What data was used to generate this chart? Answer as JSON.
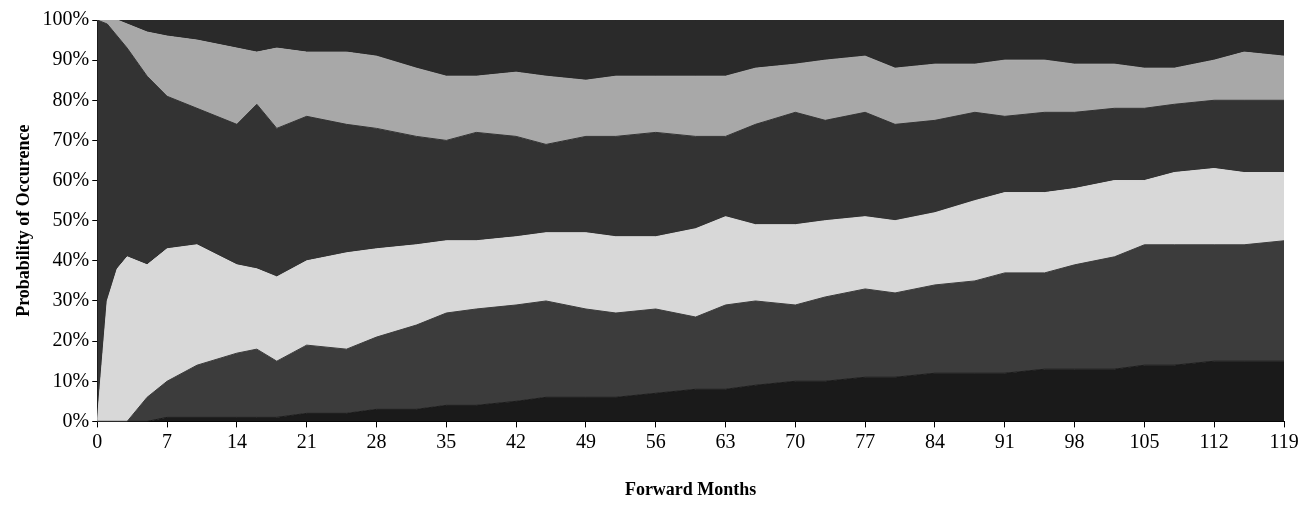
{
  "chart_data": {
    "type": "area",
    "stacked": true,
    "xlabel": "Forward Months",
    "ylabel": "Probability of Occurence",
    "marker": "none",
    "x": [
      0,
      1,
      2,
      3,
      5,
      7,
      10,
      14,
      16,
      18,
      21,
      25,
      28,
      32,
      35,
      38,
      42,
      45,
      49,
      52,
      56,
      60,
      63,
      66,
      70,
      73,
      77,
      80,
      84,
      88,
      91,
      95,
      98,
      102,
      105,
      108,
      112,
      115,
      119
    ],
    "series": [
      {
        "color": "#1a1a1a",
        "values": [
          0,
          0,
          0,
          0,
          0,
          1,
          1,
          1,
          1,
          1,
          2,
          2,
          3,
          3,
          4,
          4,
          5,
          6,
          6,
          6,
          7,
          8,
          8,
          9,
          10,
          10,
          11,
          11,
          12,
          12,
          12,
          13,
          13,
          13,
          14,
          14,
          15,
          15,
          15
        ]
      },
      {
        "color": "#3c3c3c",
        "values": [
          0,
          0,
          0,
          0,
          6,
          9,
          13,
          16,
          17,
          14,
          17,
          16,
          18,
          21,
          23,
          24,
          24,
          24,
          22,
          21,
          21,
          18,
          21,
          21,
          19,
          21,
          22,
          21,
          22,
          23,
          25,
          24,
          26,
          28,
          30,
          30,
          29,
          29,
          30
        ]
      },
      {
        "color": "#d8d8d8",
        "values": [
          0,
          30,
          38,
          41,
          33,
          33,
          30,
          22,
          20,
          21,
          21,
          24,
          22,
          20,
          18,
          17,
          17,
          17,
          19,
          19,
          18,
          22,
          22,
          19,
          20,
          19,
          18,
          18,
          18,
          20,
          20,
          20,
          19,
          19,
          16,
          18,
          19,
          18,
          17
        ]
      },
      {
        "color": "#333333",
        "values": [
          100,
          69,
          58,
          52,
          47,
          38,
          34,
          35,
          41,
          37,
          36,
          32,
          30,
          27,
          25,
          27,
          25,
          22,
          24,
          25,
          26,
          23,
          20,
          25,
          28,
          25,
          26,
          24,
          23,
          22,
          19,
          20,
          19,
          18,
          18,
          17,
          17,
          18,
          18
        ]
      },
      {
        "color": "#a8a8a8",
        "values": [
          0,
          1,
          4,
          6,
          11,
          15,
          17,
          19,
          13,
          20,
          16,
          18,
          18,
          17,
          16,
          14,
          16,
          17,
          14,
          15,
          14,
          15,
          15,
          14,
          12,
          15,
          14,
          14,
          14,
          12,
          14,
          13,
          12,
          11,
          10,
          9,
          10,
          12,
          11
        ]
      },
      {
        "color": "#2a2a2a",
        "values": [
          0,
          0,
          0,
          1,
          3,
          4,
          5,
          7,
          8,
          7,
          8,
          8,
          9,
          12,
          14,
          14,
          13,
          14,
          15,
          14,
          14,
          14,
          14,
          12,
          11,
          10,
          9,
          12,
          11,
          11,
          10,
          10,
          11,
          11,
          12,
          12,
          10,
          8,
          9
        ]
      }
    ],
    "xlim": [
      0,
      119
    ],
    "xticks": [
      0,
      7,
      14,
      21,
      28,
      35,
      42,
      49,
      56,
      63,
      70,
      77,
      84,
      91,
      98,
      105,
      112,
      119
    ],
    "ylim": [
      0,
      100
    ],
    "yticks": [
      {
        "value": 0,
        "label": "0%"
      },
      {
        "value": 10,
        "label": "10%"
      },
      {
        "value": 20,
        "label": "20%"
      },
      {
        "value": 30,
        "label": "30%"
      },
      {
        "value": 40,
        "label": "40%"
      },
      {
        "value": 50,
        "label": "50%"
      },
      {
        "value": 60,
        "label": "60%"
      },
      {
        "value": 70,
        "label": "70%"
      },
      {
        "value": 80,
        "label": "80%"
      },
      {
        "value": 90,
        "label": "90%"
      },
      {
        "value": 100,
        "label": "100%"
      }
    ],
    "grid": false,
    "legend": false
  }
}
